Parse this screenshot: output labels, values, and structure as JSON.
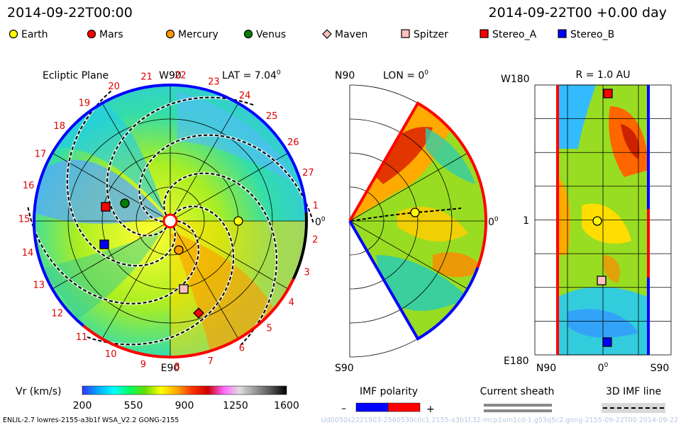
{
  "header": {
    "left_time": "2014-09-22T00:00",
    "right_time": "2014-09-22T00 +0.00 day"
  },
  "legend": [
    {
      "label": "Earth",
      "shape": "circle",
      "color": "#ffff00"
    },
    {
      "label": "Mars",
      "shape": "circle",
      "color": "#ff0000"
    },
    {
      "label": "Mercury",
      "shape": "circle",
      "color": "#ff9900"
    },
    {
      "label": "Venus",
      "shape": "circle",
      "color": "#008000"
    },
    {
      "label": "Maven",
      "shape": "diamond",
      "color": "#ffc0c0"
    },
    {
      "label": "Spitzer",
      "shape": "square",
      "color": "#ffc0c0"
    },
    {
      "label": "Stereo_A",
      "shape": "square",
      "color": "#ff0000"
    },
    {
      "label": "Stereo_B",
      "shape": "square",
      "color": "#0000ff"
    }
  ],
  "panels": {
    "ecliptic": {
      "title": "Ecliptic Plane",
      "lat_label": "LAT = 7.04",
      "lat_sup": "0",
      "top_label": "W90",
      "bottom_label": "E90",
      "right_label": "0",
      "right_sup": "0",
      "sector_numbers": [
        "1",
        "2",
        "3",
        "4",
        "5",
        "6",
        "7",
        "8",
        "9",
        "10",
        "11",
        "12",
        "13",
        "14",
        "15",
        "16",
        "17",
        "18",
        "19",
        "20",
        "21",
        "22",
        "23",
        "24",
        "25",
        "26",
        "27"
      ]
    },
    "meridional": {
      "top_label": "N90",
      "lon_label": "LON = 0",
      "lon_sup": "0",
      "bottom_label": "S90",
      "right_label": "0",
      "right_sup": "0"
    },
    "radial": {
      "top_left_label": "W180",
      "r_label": "R = 1.0 AU",
      "middle_left_label": "1",
      "bottom_left_label": "E180",
      "x_labels": [
        "N90",
        "0",
        "S90"
      ],
      "x_mid_sup": "0"
    }
  },
  "colorbar": {
    "label": "Vr (km/s)",
    "ticks": [
      "200",
      "550",
      "900",
      "1250",
      "1600"
    ],
    "stops": [
      "#3333ff",
      "#00aaff",
      "#00ffff",
      "#00ff66",
      "#66dd00",
      "#ffff00",
      "#ffaa00",
      "#ff3300",
      "#cc0000",
      "#ff66ff",
      "#dddddd",
      "#999999",
      "#555555",
      "#000000"
    ]
  },
  "imf_polarity": {
    "label": "IMF polarity",
    "minus": "–",
    "plus": "+",
    "neg_color": "#0000ff",
    "pos_color": "#ff0000"
  },
  "current_sheath": {
    "label": "Current sheath"
  },
  "imf_line": {
    "label": "3D IMF line"
  },
  "footer": {
    "left": "ENLIL-2.7 lowres-2155-a3b1f WSA_V2.2 GONG-2155",
    "right": "Ud0050s2221903-2560530c0c1.2155-a3b1f.32-mcp1um1cd-1.g53q5c2.gong-2155-09-22T00  2014-09-22"
  },
  "chart_data": [
    {
      "type": "heatmap",
      "title": "Ecliptic Plane",
      "annotation": "LAT = 7.04",
      "quantity": "Vr (km/s)",
      "range": [
        200,
        1600
      ],
      "bodies": [
        {
          "name": "Earth",
          "lon_deg": 0,
          "r_au": 1.0
        },
        {
          "name": "Mars"
        },
        {
          "name": "Mercury"
        },
        {
          "name": "Venus"
        },
        {
          "name": "Spitzer"
        },
        {
          "name": "Stereo_A"
        },
        {
          "name": "Stereo_B"
        }
      ]
    },
    {
      "type": "heatmap",
      "annotation": "LON = 0",
      "quantity": "Vr (km/s)",
      "range": [
        200,
        1600
      ],
      "ylabels": [
        "N90",
        "S90"
      ]
    },
    {
      "type": "heatmap",
      "annotation": "R = 1.0 AU",
      "quantity": "Vr (km/s)",
      "range": [
        200,
        1600
      ],
      "xlabels": [
        "N90",
        "0",
        "S90"
      ],
      "ylabels": [
        "W180",
        "1",
        "E180"
      ]
    }
  ]
}
